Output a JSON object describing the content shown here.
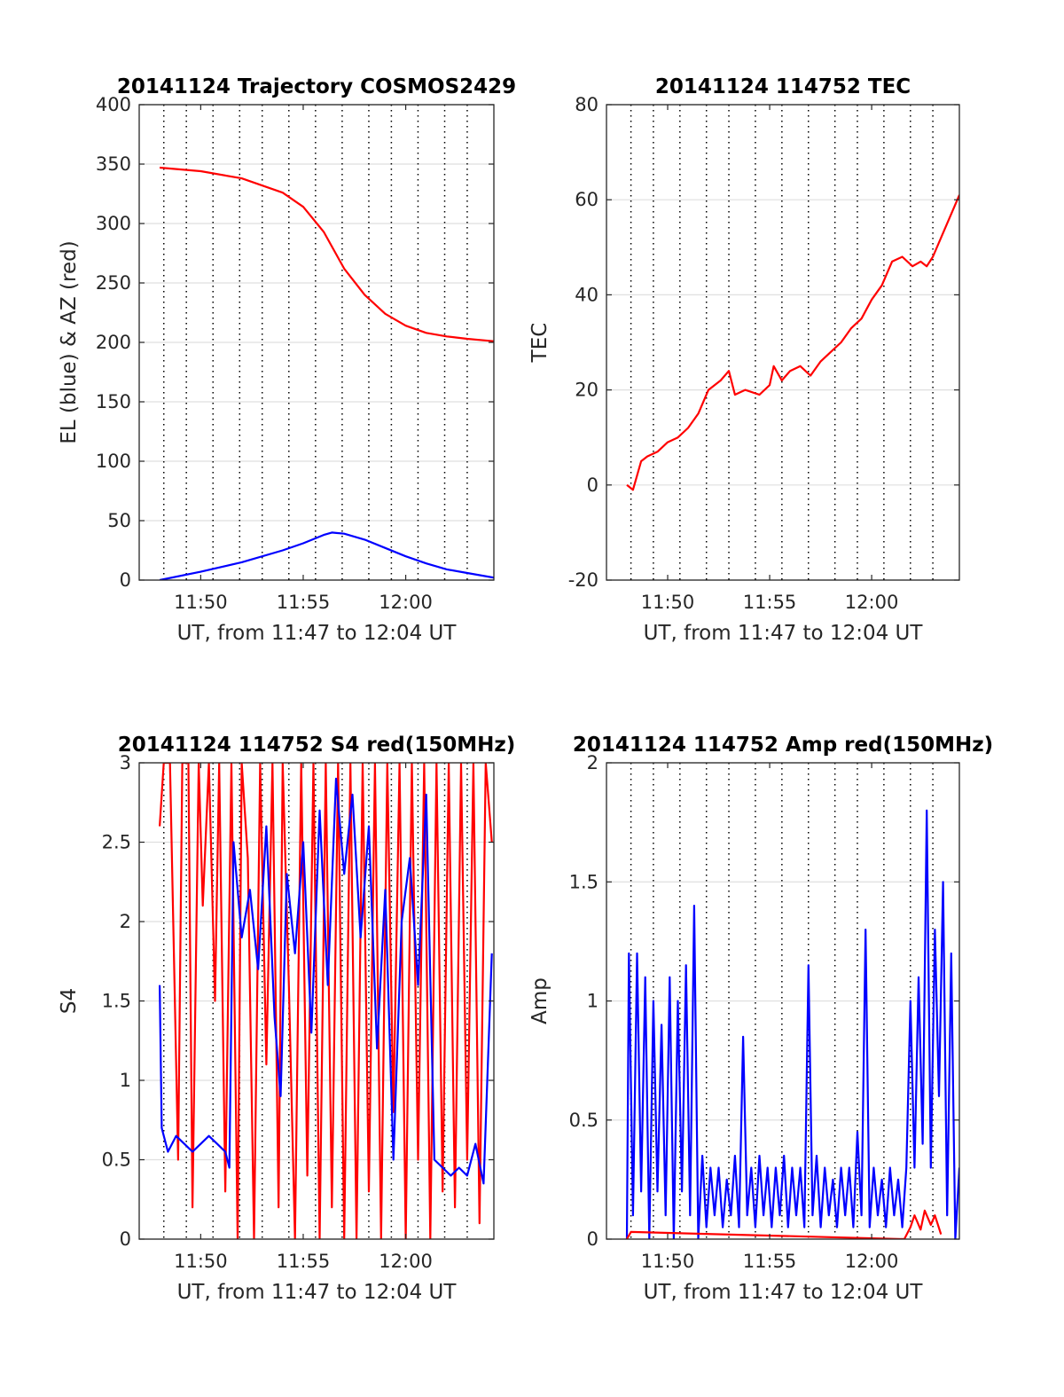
{
  "chart_data": [
    {
      "type": "line",
      "title": "20141124 Trajectory COSMOS2429",
      "xlabel": "UT, from 11:47 to 12:04 UT",
      "ylabel": "EL (blue) & AZ (red)",
      "x_range_minutes": [
        707,
        724.3
      ],
      "x_ticks": [
        "11:50",
        "11:55",
        "12:00"
      ],
      "ylim": [
        0,
        400
      ],
      "y_ticks": [
        "0",
        "50",
        "100",
        "150",
        "200",
        "250",
        "300",
        "350",
        "400"
      ],
      "grid": true,
      "series": [
        {
          "color": "#ff0000",
          "x": [
            708.0,
            710.0,
            712.0,
            714.0,
            715.0,
            716.0,
            717.0,
            718.0,
            719.0,
            720.0,
            721.0,
            722.0,
            723.0,
            724.3
          ],
          "y": [
            347,
            344,
            338,
            326,
            314,
            293,
            262,
            240,
            224,
            214,
            208,
            205,
            203,
            201
          ]
        },
        {
          "color": "#0000ff",
          "x": [
            708.0,
            710.0,
            712.0,
            714.0,
            715.0,
            716.0,
            716.4,
            717.0,
            718.0,
            719.0,
            720.0,
            721.0,
            722.0,
            723.0,
            724.3
          ],
          "y": [
            0,
            7,
            15,
            25,
            31,
            38,
            40,
            39,
            34,
            27,
            20,
            14,
            9,
            6,
            2
          ]
        }
      ]
    },
    {
      "type": "line",
      "title": "20141124 114752 TEC",
      "xlabel": "UT, from 11:47 to 12:04 UT",
      "ylabel": "TEC",
      "x_range_minutes": [
        707,
        724.3
      ],
      "x_ticks": [
        "11:50",
        "11:55",
        "12:00"
      ],
      "ylim": [
        -20,
        80
      ],
      "y_ticks": [
        "-20",
        "0",
        "20",
        "40",
        "60",
        "80"
      ],
      "grid": true,
      "series": [
        {
          "color": "#ff0000",
          "x": [
            708.0,
            708.3,
            708.7,
            709.0,
            709.5,
            710.0,
            710.5,
            711.0,
            711.5,
            712.0,
            712.6,
            713.0,
            713.3,
            713.8,
            714.5,
            715.0,
            715.2,
            715.6,
            716.0,
            716.5,
            717.0,
            717.5,
            718.0,
            718.5,
            719.0,
            719.5,
            720.0,
            720.5,
            720.8,
            721.0,
            721.5,
            722.0,
            722.4,
            722.7,
            723.0,
            723.5,
            724.0,
            724.3
          ],
          "y": [
            0,
            -1,
            5,
            6,
            7,
            9,
            10,
            12,
            15,
            20,
            22,
            24,
            19,
            20,
            19,
            21,
            25,
            22,
            24,
            25,
            23,
            26,
            28,
            30,
            33,
            35,
            39,
            42,
            45,
            47,
            48,
            46,
            47,
            46,
            48,
            53,
            58,
            61
          ]
        }
      ]
    },
    {
      "type": "line",
      "title": "20141124 114752 S4 red(150MHz)",
      "xlabel": "UT, from 11:47 to 12:04 UT",
      "ylabel": "S4",
      "x_range_minutes": [
        707,
        724.3
      ],
      "x_ticks": [
        "11:50",
        "11:55",
        "12:00"
      ],
      "ylim": [
        0,
        3
      ],
      "y_ticks": [
        "0",
        "0.5",
        "1",
        "1.5",
        "2",
        "2.5",
        "3"
      ],
      "grid": true,
      "series": [
        {
          "color": "#ff0000",
          "x": [
            708.0,
            708.2,
            708.5,
            708.9,
            709.1,
            709.4,
            709.6,
            709.9,
            710.1,
            710.4,
            710.7,
            710.9,
            711.2,
            711.5,
            711.8,
            712.0,
            712.3,
            712.6,
            712.9,
            713.2,
            713.5,
            713.8,
            714.0,
            714.3,
            714.6,
            714.9,
            715.2,
            715.5,
            715.8,
            716.1,
            716.4,
            716.7,
            717.0,
            717.3,
            717.6,
            717.9,
            718.2,
            718.5,
            718.8,
            719.1,
            719.4,
            719.7,
            720.0,
            720.3,
            720.6,
            720.9,
            721.2,
            721.5,
            721.8,
            722.1,
            722.4,
            722.7,
            723.0,
            723.3,
            723.6,
            723.9,
            724.2
          ],
          "y": [
            2.6,
            3,
            3,
            0.5,
            3,
            3,
            0.2,
            3,
            2.1,
            3,
            1.5,
            3,
            0.3,
            3,
            0,
            3,
            2.4,
            0,
            3,
            1.1,
            3,
            0.2,
            3,
            1.6,
            0,
            3,
            0.4,
            3,
            0,
            3,
            0.2,
            3,
            0,
            3,
            0,
            3,
            0.3,
            3,
            0,
            3,
            0.8,
            3,
            0,
            3,
            0.5,
            3,
            0,
            3,
            0.3,
            3,
            0.2,
            3,
            0.5,
            3,
            0.1,
            3,
            2.5
          ]
        },
        {
          "color": "#0000ff",
          "x": [
            708.0,
            708.1,
            708.4,
            708.8,
            709.2,
            709.6,
            710.0,
            710.4,
            710.8,
            711.2,
            711.4,
            711.6,
            712.0,
            712.4,
            712.8,
            713.2,
            713.6,
            713.9,
            714.2,
            714.6,
            715.0,
            715.4,
            715.8,
            716.2,
            716.6,
            717.0,
            717.4,
            717.8,
            718.2,
            718.6,
            719.0,
            719.4,
            719.8,
            720.2,
            720.6,
            721.0,
            721.4,
            721.8,
            722.2,
            722.6,
            723.0,
            723.4,
            723.8,
            724.2
          ],
          "y": [
            1.6,
            0.7,
            0.55,
            0.65,
            0.6,
            0.55,
            0.6,
            0.65,
            0.6,
            0.55,
            0.45,
            2.5,
            1.9,
            2.2,
            1.7,
            2.6,
            1.4,
            0.9,
            2.3,
            1.8,
            2.5,
            1.3,
            2.7,
            1.6,
            2.9,
            2.3,
            2.8,
            1.9,
            2.6,
            1.2,
            2.2,
            0.5,
            2.0,
            2.4,
            1.6,
            2.8,
            0.5,
            0.45,
            0.4,
            0.45,
            0.4,
            0.6,
            0.35,
            1.8
          ]
        }
      ]
    },
    {
      "type": "line",
      "title": "20141124 114752 Amp red(150MHz)",
      "xlabel": "UT, from 11:47 to 12:04 UT",
      "ylabel": "Amp",
      "x_range_minutes": [
        707,
        724.3
      ],
      "x_ticks": [
        "11:50",
        "11:55",
        "12:00"
      ],
      "ylim": [
        0,
        2
      ],
      "y_ticks": [
        "0",
        "0.5",
        "1",
        "1.5",
        "2"
      ],
      "grid": true,
      "series": [
        {
          "color": "#0000ff",
          "x": [
            708.0,
            708.1,
            708.3,
            708.5,
            708.7,
            708.9,
            709.1,
            709.3,
            709.5,
            709.7,
            709.9,
            710.1,
            710.3,
            710.5,
            710.7,
            710.9,
            711.1,
            711.3,
            711.5,
            711.7,
            711.9,
            712.1,
            712.3,
            712.5,
            712.7,
            712.9,
            713.1,
            713.3,
            713.5,
            713.7,
            713.9,
            714.1,
            714.3,
            714.5,
            714.7,
            714.9,
            715.1,
            715.3,
            715.5,
            715.7,
            715.9,
            716.1,
            716.3,
            716.5,
            716.7,
            716.9,
            717.1,
            717.3,
            717.5,
            717.7,
            717.9,
            718.1,
            718.3,
            718.5,
            718.7,
            718.9,
            719.1,
            719.3,
            719.5,
            719.7,
            719.9,
            720.1,
            720.3,
            720.5,
            720.7,
            720.9,
            721.1,
            721.3,
            721.5,
            721.7,
            721.9,
            722.1,
            722.3,
            722.5,
            722.7,
            722.9,
            723.1,
            723.3,
            723.5,
            723.7,
            723.9,
            724.1,
            724.3
          ],
          "y": [
            0,
            1.2,
            0.1,
            1.2,
            0.2,
            1.1,
            0,
            1.0,
            0.2,
            0.9,
            0.1,
            1.1,
            0,
            1.0,
            0.2,
            1.15,
            0.1,
            1.4,
            0,
            0.35,
            0.05,
            0.3,
            0.1,
            0.3,
            0.05,
            0.25,
            0.1,
            0.35,
            0.05,
            0.85,
            0.1,
            0.3,
            0.05,
            0.35,
            0.1,
            0.3,
            0.05,
            0.3,
            0.1,
            0.35,
            0.05,
            0.3,
            0.1,
            0.3,
            0.05,
            1.15,
            0.1,
            0.35,
            0.05,
            0.3,
            0.1,
            0.25,
            0.05,
            0.3,
            0.1,
            0.3,
            0.05,
            0.45,
            0.1,
            1.3,
            0.05,
            0.3,
            0.1,
            0.25,
            0.05,
            0.3,
            0.1,
            0.25,
            0.05,
            0.3,
            1.0,
            0.3,
            1.1,
            0.4,
            1.8,
            0.3,
            1.3,
            0.6,
            1.5,
            0.1,
            1.2,
            0,
            0.3
          ]
        },
        {
          "color": "#ff0000",
          "x": [
            708.0,
            708.2,
            721.6,
            721.9,
            722.1,
            722.4,
            722.6,
            722.9,
            723.1,
            723.4
          ],
          "y": [
            0,
            0.03,
            0,
            0.05,
            0.1,
            0.04,
            0.12,
            0.06,
            0.1,
            0.02
          ]
        }
      ]
    }
  ]
}
